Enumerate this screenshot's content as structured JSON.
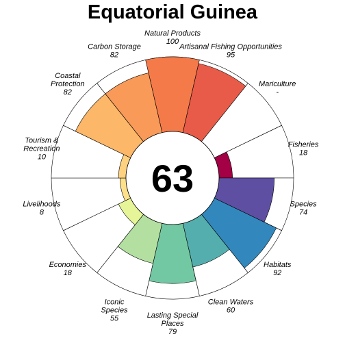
{
  "chart_data": {
    "type": "flower",
    "title": "Equatorial Guinea",
    "center_score": "63",
    "max_score": 100,
    "petals": [
      {
        "lines": [
          "Natural Products"
        ],
        "score": 100,
        "score_text": "100",
        "color": "#F47A4A"
      },
      {
        "lines": [
          "Artisanal Fishing Opportunities"
        ],
        "score": 95,
        "score_text": "95",
        "color": "#E75B48"
      },
      {
        "lines": [
          "Mariculture"
        ],
        "score": null,
        "score_text": "-",
        "color": "#D53E4F"
      },
      {
        "lines": [
          "Fisheries"
        ],
        "score": 18,
        "score_text": "18",
        "color": "#A30045"
      },
      {
        "lines": [
          "Species"
        ],
        "score": 74,
        "score_text": "74",
        "color": "#5E4FA2"
      },
      {
        "lines": [
          "Habitats"
        ],
        "score": 92,
        "score_text": "92",
        "color": "#3288BD"
      },
      {
        "lines": [
          "Clean Waters"
        ],
        "score": 60,
        "score_text": "60",
        "color": "#54AEAD"
      },
      {
        "lines": [
          "Lasting Special",
          "Places"
        ],
        "score": 79,
        "score_text": "79",
        "color": "#73C8A4"
      },
      {
        "lines": [
          "Iconic",
          "Species"
        ],
        "score": 55,
        "score_text": "55",
        "color": "#B3E0A1"
      },
      {
        "lines": [
          "Economies"
        ],
        "score": 18,
        "score_text": "18",
        "color": "#E6F598"
      },
      {
        "lines": [
          "Livelihoods"
        ],
        "score": 8,
        "score_text": "8",
        "color": "#FEE08B"
      },
      {
        "lines": [
          "Tourism &",
          "Recreation"
        ],
        "score": 10,
        "score_text": "10",
        "color": "#FDD17F"
      },
      {
        "lines": [
          "Coastal",
          "Protection"
        ],
        "score": 82,
        "score_text": "82",
        "color": "#FDB768"
      },
      {
        "lines": [
          "Carbon Storage"
        ],
        "score": 82,
        "score_text": "82",
        "color": "#FA9A58"
      }
    ]
  }
}
